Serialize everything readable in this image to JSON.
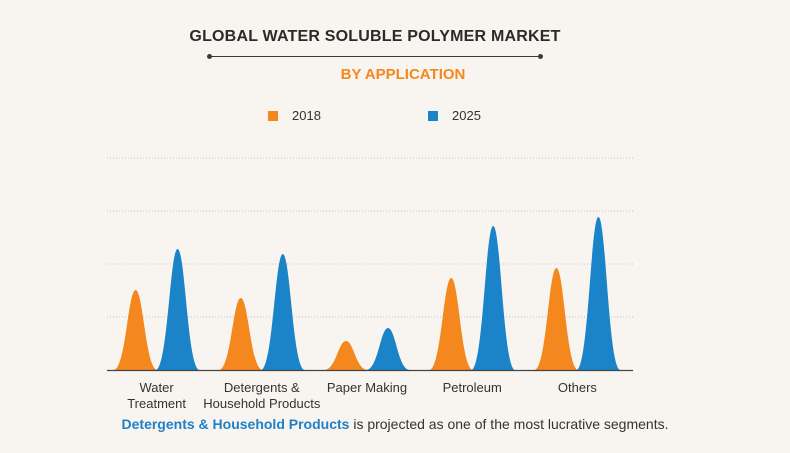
{
  "header": {
    "title": "GLOBAL WATER SOLUBLE POLYMER MARKET",
    "subtitle": "BY APPLICATION"
  },
  "legend": [
    {
      "label": "2018",
      "color": "#f5871f"
    },
    {
      "label": "2025",
      "color": "#1b84c9"
    }
  ],
  "chart_data": {
    "type": "area",
    "shape": "peak",
    "categories": [
      "Water\nTreatment",
      "Detergents &\nHousehold Products",
      "Paper Making",
      "Petroleum",
      "Others"
    ],
    "series": [
      {
        "name": "2018",
        "color": "#f5871f",
        "values": [
          80,
          72,
          29,
          92,
          102
        ]
      },
      {
        "name": "2025",
        "color": "#1b84c9",
        "values": [
          121,
          116,
          42,
          144,
          153
        ]
      }
    ],
    "ylim": [
      0,
      212
    ],
    "gridlines": 4,
    "grid": true,
    "axis_labels_visible": false,
    "xlabel": "",
    "ylabel": ""
  },
  "caption": {
    "highlight": "Detergents & Household Products",
    "rest": " is projected as one of the most lucrative segments."
  }
}
